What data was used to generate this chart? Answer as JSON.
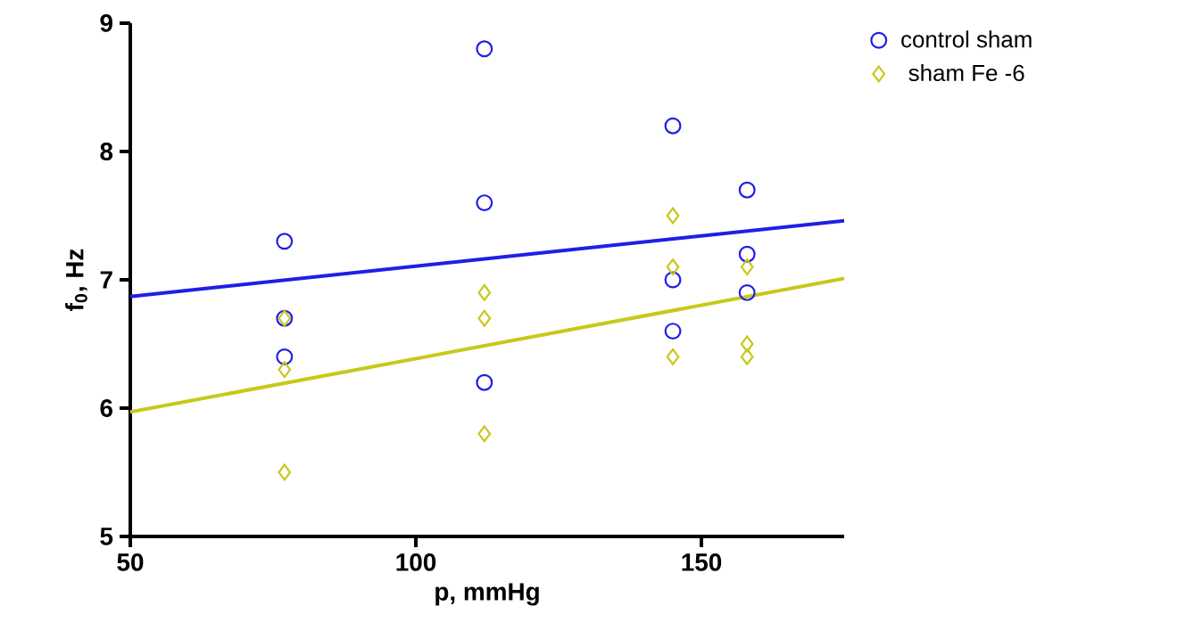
{
  "chart_data": {
    "type": "scatter",
    "xlabel": "p, mmHg",
    "ylabel": "f$_{0}$, Hz",
    "xlim": [
      50,
      175
    ],
    "ylim": [
      5,
      9
    ],
    "xticks": [
      50,
      100,
      150
    ],
    "yticks": [
      5,
      6,
      7,
      8,
      9
    ],
    "grid": false,
    "legend": "top right",
    "series": [
      {
        "name": "control sham",
        "color": "#1f1fe6",
        "marker": "circle",
        "x": [
          77,
          77,
          77,
          112,
          112,
          112,
          145,
          145,
          145,
          158,
          158,
          158
        ],
        "values": [
          7.3,
          6.7,
          6.4,
          8.8,
          7.6,
          6.2,
          8.2,
          7.0,
          6.6,
          7.7,
          7.2,
          6.9
        ]
      },
      {
        "name": "sham Fe -6",
        "color": "#c8c81a",
        "marker": "diamond",
        "x": [
          77,
          77,
          77,
          112,
          112,
          112,
          145,
          145,
          145,
          158,
          158,
          158
        ],
        "values": [
          6.7,
          6.3,
          5.5,
          6.9,
          6.7,
          5.8,
          7.5,
          7.1,
          6.4,
          7.1,
          6.5,
          6.4
        ]
      },
      {
        "type": "line",
        "color": "#1f1fe6",
        "marker": "none",
        "x": [
          50,
          175
        ],
        "values": [
          6.87,
          7.46
        ]
      },
      {
        "type": "line",
        "color": "#c8c81a",
        "marker": "none",
        "x": [
          50,
          175
        ],
        "values": [
          5.97,
          7.01
        ]
      }
    ]
  }
}
